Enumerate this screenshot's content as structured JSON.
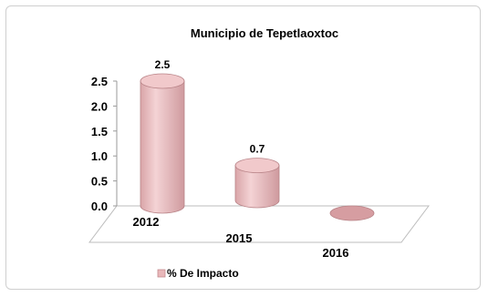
{
  "chart_data": {
    "type": "bar",
    "title": "Municipio de Tepetlaoxtoc",
    "categories": [
      "2012",
      "2015",
      "2016"
    ],
    "series": [
      {
        "name": "% De Impacto",
        "values": [
          2.5,
          0.7,
          0.0
        ],
        "color": "#e8b7b9"
      }
    ],
    "data_labels": [
      "2.5",
      "0.7",
      ""
    ],
    "y_ticks": [
      "0.0",
      "0.5",
      "1.0",
      "1.5",
      "2.0",
      "2.5"
    ],
    "ylim": [
      0,
      2.5
    ],
    "legend_position": "bottom-left",
    "style": "3d-cylinder"
  }
}
